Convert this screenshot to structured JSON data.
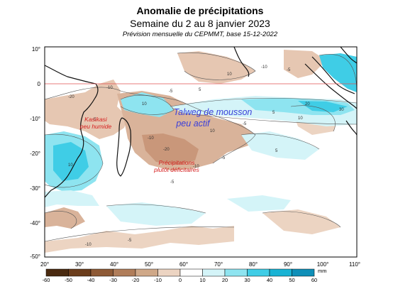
{
  "title": {
    "line1": "Anomalie de précipitations",
    "line2": "Semaine du 2 au 8 janvier 2023",
    "line3": "Prévision mensuelle du CEPMMT, base 15-12-2022"
  },
  "map": {
    "lon_range": [
      20,
      110
    ],
    "lat_range": [
      -50,
      10
    ],
    "lon_ticks": [
      "20°",
      "30°",
      "40°",
      "50°",
      "60°",
      "70°",
      "80°",
      "90°",
      "100°",
      "110°"
    ],
    "lat_ticks": [
      "10°",
      "0",
      "-10°",
      "-20°",
      "-30°",
      "-40°",
      "-50°"
    ],
    "equator_line_color": "#e05050",
    "annotations": {
      "kasikasi": [
        "Kasikasi",
        "peu humide"
      ],
      "precip": [
        "Précipitations",
        "plutôt déficitaires"
      ],
      "talweg": [
        "Talweg de mousson",
        "peu actif"
      ]
    },
    "contour_labels": [
      "-20",
      "-10",
      "-5",
      "10",
      "-5",
      "5",
      "10",
      "-20",
      "-10",
      "-5",
      "10",
      "20",
      "30",
      "10",
      "5",
      "-5",
      "-10",
      "5",
      "-5",
      "10",
      "-5",
      "-10",
      "-5",
      "-10"
    ]
  },
  "colorbar": {
    "unit": "mm",
    "labels": [
      "-60",
      "-50",
      "-40",
      "-30",
      "-20",
      "-10",
      "0",
      "10",
      "20",
      "30",
      "40",
      "50",
      "60"
    ],
    "colors": [
      "#4a2a10",
      "#6b3d1c",
      "#8e5a36",
      "#b07d5a",
      "#cfa888",
      "#ecd4c2",
      "#ffffff",
      "#d4f4f8",
      "#8ee4f0",
      "#3fcde6",
      "#19b3d4",
      "#0f8fb8"
    ]
  }
}
